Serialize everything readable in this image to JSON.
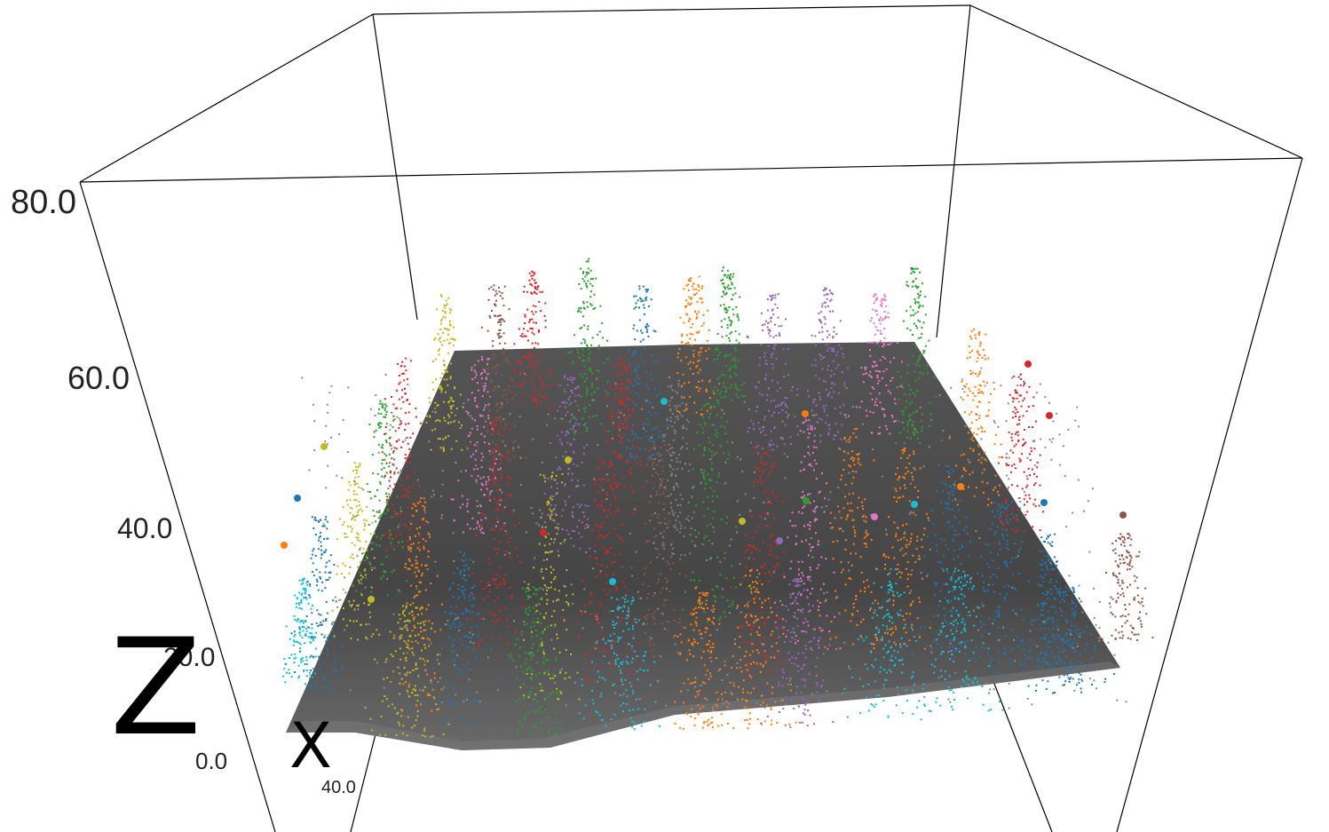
{
  "chart_data": {
    "type": "scatter",
    "title": "",
    "zlabel": "Z",
    "xlabel": "X",
    "z_ticks": [
      "80.0",
      "60.0",
      "40.0",
      "20.0",
      "0.0"
    ],
    "x_ticks": [
      "40.0"
    ],
    "zlim": [
      0,
      80
    ],
    "grid": false,
    "legend": "none",
    "surface_color": "#4a4a4a",
    "point_colors": [
      "#1f77b4",
      "#ff7f0e",
      "#2ca02c",
      "#d62728",
      "#9467bd",
      "#8c564b",
      "#e377c2",
      "#7f7f7f",
      "#bcbd22",
      "#17becf"
    ],
    "description_type": "3d-lidar-tree-segmentation"
  }
}
